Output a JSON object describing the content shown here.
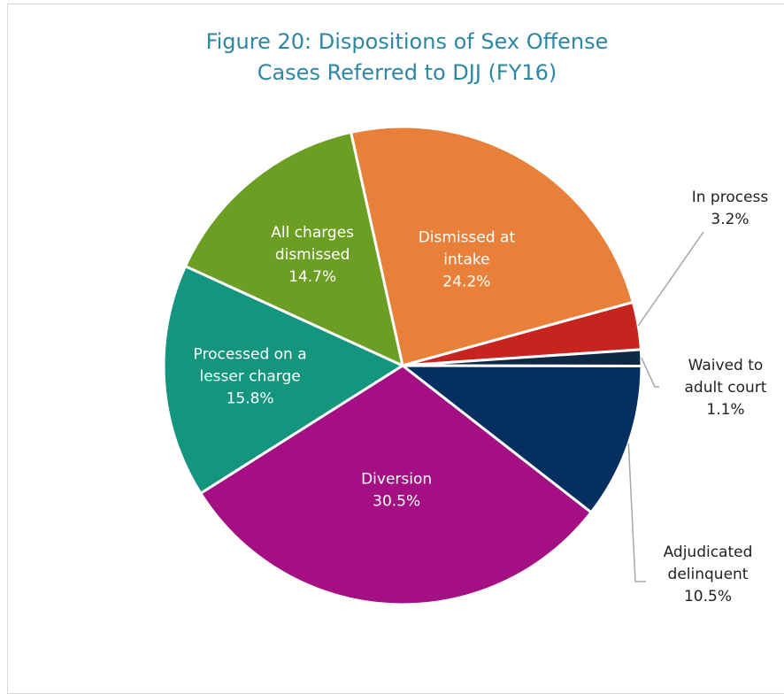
{
  "chart_data": {
    "type": "pie",
    "title": "Figure 20: Dispositions of Sex Offense Cases Referred to DJJ (FY16)",
    "title_lines": [
      "Figure 20: Dispositions of Sex Offense",
      "Cases Referred to DJJ (FY16)"
    ],
    "slices": [
      {
        "label": "Dismissed at intake",
        "value": 24.2,
        "text": "24.2%",
        "color": "#e8803a",
        "label_lines": [
          "Dismissed at",
          "intake"
        ]
      },
      {
        "label": "In process",
        "value": 3.2,
        "text": "3.2%",
        "color": "#c8241f",
        "label_lines": [
          "In process"
        ]
      },
      {
        "label": "Waived to adult court",
        "value": 1.1,
        "text": "1.1%",
        "color": "#0c2a46",
        "label_lines": [
          "Waived to",
          "adult court"
        ]
      },
      {
        "label": "Adjudicated delinquent",
        "value": 10.5,
        "text": "10.5%",
        "color": "#052f60",
        "label_lines": [
          "Adjudicated",
          "delinquent"
        ]
      },
      {
        "label": "Diversion",
        "value": 30.5,
        "text": "30.5%",
        "color": "#a50f84",
        "label_lines": [
          "Diversion"
        ]
      },
      {
        "label": "Processed on a lesser charge",
        "value": 15.8,
        "text": "15.8%",
        "color": "#13957e",
        "label_lines": [
          "Processed on a",
          "lesser charge"
        ]
      },
      {
        "label": "All charges dismissed",
        "value": 14.7,
        "text": "14.7%",
        "color": "#6b9e22",
        "label_lines": [
          "All charges",
          "dismissed"
        ]
      }
    ],
    "inside_label_color": "#ffffff",
    "outside_label_color": "#222222",
    "leader_line_color": "#a6a6a6"
  }
}
